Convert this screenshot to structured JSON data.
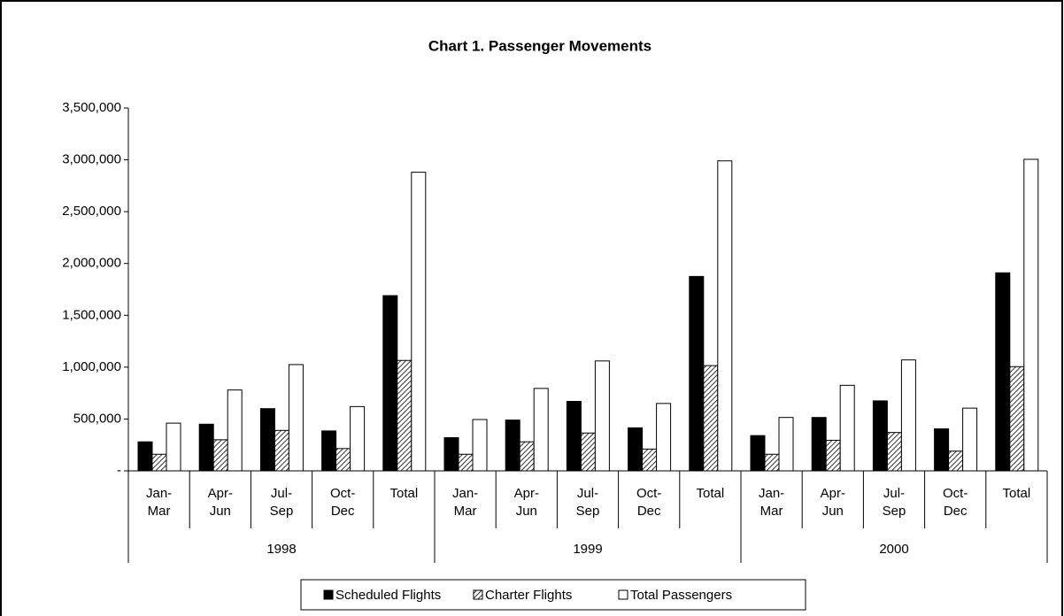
{
  "chart_data": {
    "type": "bar",
    "title": "Chart 1.  Passenger Movements",
    "groups": [
      {
        "name": "1998",
        "categories": [
          "Jan-Mar",
          "Apr-Jun",
          "Jul-Sep",
          "Oct-Dec",
          "Total"
        ]
      },
      {
        "name": "1999",
        "categories": [
          "Jan-Mar",
          "Apr-Jun",
          "Jul-Sep",
          "Oct-Dec",
          "Total"
        ]
      },
      {
        "name": "2000",
        "categories": [
          "Jan-Mar",
          "Apr-Jun",
          "Jul-Sep",
          "Oct-Dec",
          "Total"
        ]
      }
    ],
    "series": [
      {
        "name": "Scheduled Flights",
        "color": "#000000",
        "pattern": "solid",
        "values": [
          280000,
          450000,
          600000,
          385000,
          1690000,
          320000,
          490000,
          670000,
          415000,
          1875000,
          340000,
          515000,
          675000,
          405000,
          1910000
        ]
      },
      {
        "name": "Charter Flights",
        "color": "#000000",
        "pattern": "hatch",
        "values": [
          160000,
          300000,
          390000,
          215000,
          1065000,
          160000,
          280000,
          365000,
          210000,
          1015000,
          160000,
          295000,
          370000,
          190000,
          1005000
        ]
      },
      {
        "name": "Total Passengers",
        "color": "#ffffff",
        "pattern": "solid",
        "values": [
          460000,
          780000,
          1025000,
          620000,
          2880000,
          495000,
          795000,
          1060000,
          650000,
          2990000,
          515000,
          825000,
          1070000,
          605000,
          3005000
        ]
      }
    ],
    "ylim": [
      0,
      3500000
    ],
    "yticks": [
      {
        "value": 0,
        "label": "-"
      },
      {
        "value": 500000,
        "label": "500,000"
      },
      {
        "value": 1000000,
        "label": "1,000,000"
      },
      {
        "value": 1500000,
        "label": "1,500,000"
      },
      {
        "value": 2000000,
        "label": "2,000,000"
      },
      {
        "value": 2500000,
        "label": "2,500,000"
      },
      {
        "value": 3000000,
        "label": "3,000,000"
      },
      {
        "value": 3500000,
        "label": "3,500,000"
      }
    ],
    "grid": false,
    "legend": "bottom"
  }
}
